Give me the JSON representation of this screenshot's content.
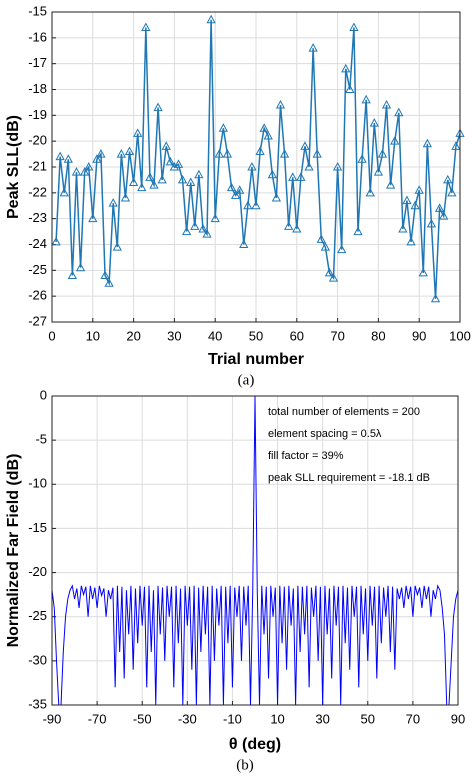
{
  "chart_data": [
    {
      "type": "line",
      "caption": "(a)",
      "xlabel": "Trial number",
      "ylabel": "Peak SLL(dB)",
      "xlim": [
        0,
        100
      ],
      "xticks": [
        0,
        10,
        20,
        30,
        40,
        50,
        60,
        70,
        80,
        90,
        100
      ],
      "ylim": [
        -27,
        -15
      ],
      "yticks": [
        -15,
        -16,
        -17,
        -18,
        -19,
        -20,
        -21,
        -22,
        -23,
        -24,
        -25,
        -26,
        -27
      ],
      "grid": true,
      "marker": "triangle",
      "series": [
        {
          "color": "#1f77b4",
          "x": [
            1,
            2,
            3,
            4,
            5,
            6,
            7,
            8,
            9,
            10,
            11,
            12,
            13,
            14,
            15,
            16,
            17,
            18,
            19,
            20,
            21,
            22,
            23,
            24,
            25,
            26,
            27,
            28,
            29,
            30,
            31,
            32,
            33,
            34,
            35,
            36,
            37,
            38,
            39,
            40,
            41,
            42,
            43,
            44,
            45,
            46,
            47,
            48,
            49,
            50,
            51,
            52,
            53,
            54,
            55,
            56,
            57,
            58,
            59,
            60,
            61,
            62,
            63,
            64,
            65,
            66,
            67,
            68,
            69,
            70,
            71,
            72,
            73,
            74,
            75,
            76,
            77,
            78,
            79,
            80,
            81,
            82,
            83,
            84,
            85,
            86,
            87,
            88,
            89,
            90,
            91,
            92,
            93,
            94,
            95,
            96,
            97,
            98,
            99,
            100
          ],
          "values": [
            -23.9,
            -20.6,
            -22.0,
            -20.7,
            -25.2,
            -21.2,
            -24.9,
            -21.2,
            -21.0,
            -23.0,
            -20.7,
            -20.5,
            -25.2,
            -25.5,
            -22.4,
            -24.1,
            -20.5,
            -22.2,
            -20.4,
            -21.6,
            -19.7,
            -21.8,
            -15.6,
            -21.4,
            -21.7,
            -18.7,
            -21.5,
            -20.2,
            -20.8,
            -21.0,
            -20.9,
            -21.5,
            -23.5,
            -21.6,
            -23.3,
            -21.3,
            -23.4,
            -23.6,
            -15.3,
            -23.0,
            -20.5,
            -19.5,
            -20.5,
            -21.8,
            -22.1,
            -21.9,
            -24.0,
            -22.5,
            -21.0,
            -22.5,
            -20.4,
            -19.5,
            -19.8,
            -21.3,
            -22.2,
            -18.6,
            -20.5,
            -23.3,
            -21.4,
            -23.4,
            -21.4,
            -20.2,
            -21.0,
            -16.4,
            -20.5,
            -23.8,
            -24.1,
            -25.1,
            -25.3,
            -21.0,
            -24.2,
            -17.2,
            -18.0,
            -15.6,
            -23.5,
            -20.7,
            -18.4,
            -22.0,
            -19.3,
            -21.2,
            -20.5,
            -18.6,
            -21.7,
            -20.0,
            -18.9,
            -23.4,
            -22.3,
            -23.9,
            -22.5,
            -21.9,
            -25.1,
            -20.1,
            -23.2,
            -26.1,
            -22.6,
            -22.9,
            -21.5,
            -22.0,
            -20.2,
            -19.7
          ]
        }
      ]
    },
    {
      "type": "line",
      "caption": "(b)",
      "xlabel": "θ (deg)",
      "ylabel": "Normalized Far Field (dB)",
      "xlim": [
        -90,
        90
      ],
      "xticks": [
        -90,
        -70,
        -50,
        -30,
        -10,
        10,
        30,
        50,
        70,
        90
      ],
      "ylim": [
        -35,
        0
      ],
      "yticks": [
        0,
        -5,
        -10,
        -15,
        -20,
        -25,
        -30,
        -35
      ],
      "grid": true,
      "annotations": [
        "total number of elements = 200",
        "element spacing = 0.5λ",
        "fill factor = 39%",
        "peak SLL requirement = -18.1 dB"
      ],
      "series": [
        {
          "color": "#0000ff",
          "x": [
            -90,
            -89,
            -88,
            -87,
            -86,
            -85,
            -84,
            -83,
            -82,
            -81,
            -80,
            -79,
            -78,
            -77,
            -76,
            -75,
            -74,
            -73,
            -72,
            -71,
            -70,
            -69,
            -68,
            -67,
            -66,
            -65,
            -64,
            -63,
            -62,
            -61,
            -60,
            -59,
            -58,
            -57,
            -56,
            -55,
            -54,
            -53,
            -52,
            -51,
            -50,
            -49,
            -48,
            -47,
            -46,
            -45,
            -44,
            -43,
            -42,
            -41,
            -40,
            -39,
            -38,
            -37,
            -36,
            -35,
            -34,
            -33,
            -32,
            -31,
            -30,
            -29,
            -28,
            -27,
            -26,
            -25,
            -24,
            -23,
            -22,
            -21,
            -20,
            -19,
            -18,
            -17,
            -16,
            -15,
            -14,
            -13,
            -12,
            -11,
            -10,
            -9,
            -8,
            -7,
            -6,
            -5,
            -4,
            -3,
            -2,
            -1,
            0,
            1,
            2,
            3,
            4,
            5,
            6,
            7,
            8,
            9,
            10,
            11,
            12,
            13,
            14,
            15,
            16,
            17,
            18,
            19,
            20,
            21,
            22,
            23,
            24,
            25,
            26,
            27,
            28,
            29,
            30,
            31,
            32,
            33,
            34,
            35,
            36,
            37,
            38,
            39,
            40,
            41,
            42,
            43,
            44,
            45,
            46,
            47,
            48,
            49,
            50,
            51,
            52,
            53,
            54,
            55,
            56,
            57,
            58,
            59,
            60,
            61,
            62,
            63,
            64,
            65,
            66,
            67,
            68,
            69,
            70,
            71,
            72,
            73,
            74,
            75,
            76,
            77,
            78,
            79,
            80,
            81,
            82,
            83,
            84,
            85,
            86,
            87,
            88,
            89,
            90
          ],
          "values": [
            -22,
            -24,
            -30,
            -35,
            -35,
            -29,
            -25,
            -23,
            -22,
            -21.5,
            -23,
            -21.8,
            -24,
            -21.5,
            -22.5,
            -21.6,
            -25,
            -21.5,
            -23,
            -21.7,
            -24,
            -21.5,
            -22.6,
            -21.8,
            -25,
            -22,
            -23,
            -21.7,
            -33,
            -21.5,
            -29,
            -21.6,
            -32,
            -22,
            -27,
            -21.5,
            -31,
            -21.8,
            -28,
            -21.5,
            -26,
            -21.6,
            -33,
            -21.5,
            -29,
            -22,
            -35,
            -21.5,
            -27,
            -21.7,
            -30,
            -21.5,
            -25,
            -21.6,
            -33,
            -21.5,
            -28,
            -21.8,
            -35,
            -21.5,
            -26,
            -21.6,
            -31,
            -21.5,
            -35,
            -21.7,
            -29,
            -21.5,
            -27,
            -21.6,
            -35,
            -21.5,
            -30,
            -21.8,
            -26,
            -21.5,
            -35,
            -21.6,
            -28,
            -21.5,
            -33,
            -21.7,
            -25,
            -21.5,
            -30,
            -21.6,
            -26,
            -21.5,
            -35,
            -22,
            0,
            -22,
            -35,
            -21.5,
            -27,
            -21.6,
            -32,
            -21.5,
            -25,
            -21.7,
            -35,
            -21.5,
            -28,
            -21.6,
            -31,
            -21.5,
            -26,
            -21.8,
            -35,
            -21.5,
            -29,
            -21.6,
            -27,
            -21.5,
            -33,
            -21.7,
            -25,
            -21.5,
            -30,
            -21.6,
            -35,
            -21.5,
            -27,
            -21.8,
            -32,
            -21.5,
            -26,
            -21.6,
            -35,
            -21.5,
            -28,
            -21.7,
            -31,
            -21.5,
            -25,
            -21.6,
            -33,
            -21.5,
            -27,
            -21.8,
            -30,
            -21.5,
            -26,
            -21.6,
            -32,
            -21.5,
            -28,
            -21.7,
            -25,
            -21.5,
            -29,
            -21.6,
            -31,
            -21.8,
            -23,
            -21.7,
            -24,
            -21.5,
            -23,
            -21.6,
            -25,
            -21.5,
            -22.5,
            -21.7,
            -24,
            -21.5,
            -23,
            -21.6,
            -25,
            -22,
            -23,
            -21.5,
            -22,
            -24,
            -27,
            -35,
            -35,
            -30,
            -25,
            -23,
            -22
          ]
        }
      ]
    }
  ]
}
